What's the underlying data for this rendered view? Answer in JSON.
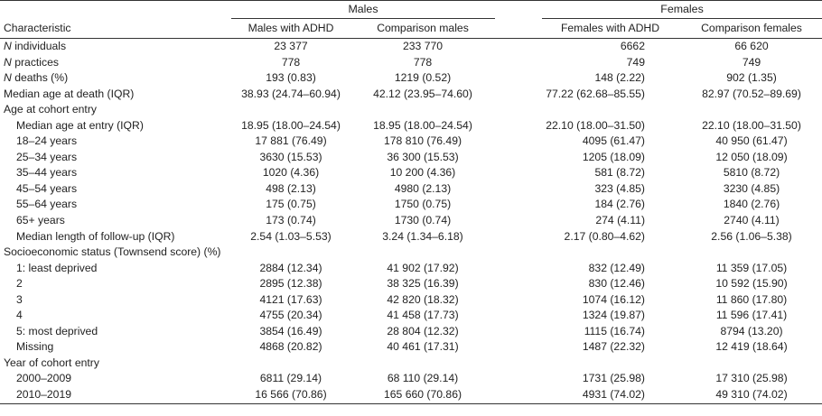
{
  "header": {
    "groups": {
      "males": "Males",
      "females": "Females"
    },
    "columns": {
      "characteristic": "Characteristic",
      "males_adhd": "Males with ADHD",
      "comparison_males": "Comparison males",
      "females_adhd": "Females with ADHD",
      "comparison_females": "Comparison females"
    }
  },
  "rows": [
    {
      "label_italic": "N",
      "label_rest": " individuals",
      "indent": false,
      "v": [
        "23 377",
        "233 770",
        "6662",
        "66 620"
      ]
    },
    {
      "label_italic": "N",
      "label_rest": " practices",
      "indent": false,
      "v": [
        "778",
        "778",
        "749",
        "749"
      ]
    },
    {
      "label_italic": "N",
      "label_rest": " deaths (%)",
      "indent": false,
      "v": [
        "193 (0.83)",
        "1219 (0.52)",
        "148 (2.22)",
        "902 (1.35)"
      ]
    },
    {
      "label_italic": "",
      "label_rest": "Median age at death (IQR)",
      "indent": false,
      "v": [
        "38.93 (24.74–60.94)",
        "42.12 (23.95–74.60)",
        "77.22 (62.68–85.55)",
        "82.97 (70.52–89.69)"
      ]
    },
    {
      "label_italic": "",
      "label_rest": "Age at cohort entry",
      "indent": false,
      "v": [
        "",
        "",
        "",
        ""
      ]
    },
    {
      "label_italic": "",
      "label_rest": "Median age at entry (IQR)",
      "indent": true,
      "v": [
        "18.95 (18.00–24.54)",
        "18.95 (18.00–24.54)",
        "22.10 (18.00–31.50)",
        "22.10 (18.00–31.50)"
      ]
    },
    {
      "label_italic": "",
      "label_rest": "18–24 years",
      "indent": true,
      "v": [
        "17 881 (76.49)",
        "178 810 (76.49)",
        "4095 (61.47)",
        "40 950 (61.47)"
      ]
    },
    {
      "label_italic": "",
      "label_rest": "25–34 years",
      "indent": true,
      "v": [
        "3630 (15.53)",
        "36 300 (15.53)",
        "1205 (18.09)",
        "12 050 (18.09)"
      ]
    },
    {
      "label_italic": "",
      "label_rest": "35–44 years",
      "indent": true,
      "v": [
        "1020 (4.36)",
        "10 200 (4.36)",
        "581 (8.72)",
        "5810 (8.72)"
      ]
    },
    {
      "label_italic": "",
      "label_rest": "45–54 years",
      "indent": true,
      "v": [
        "498 (2.13)",
        "4980 (2.13)",
        "323 (4.85)",
        "3230 (4.85)"
      ]
    },
    {
      "label_italic": "",
      "label_rest": "55–64 years",
      "indent": true,
      "v": [
        "175 (0.75)",
        "1750 (0.75)",
        "184 (2.76)",
        "1840 (2.76)"
      ]
    },
    {
      "label_italic": "",
      "label_rest": "65+ years",
      "indent": true,
      "v": [
        "173 (0.74)",
        "1730 (0.74)",
        "274 (4.11)",
        "2740 (4.11)"
      ]
    },
    {
      "label_italic": "",
      "label_rest": "Median length of follow-up (IQR)",
      "indent": true,
      "v": [
        "2.54 (1.03–5.53)",
        "3.24 (1.34–6.18)",
        "2.17 (0.80–4.62)",
        "2.56 (1.06–5.38)"
      ]
    },
    {
      "label_italic": "",
      "label_rest": "Socioeconomic status (Townsend score) (%)",
      "indent": false,
      "v": [
        "",
        "",
        "",
        ""
      ]
    },
    {
      "label_italic": "",
      "label_rest": "1: least deprived",
      "indent": true,
      "v": [
        "2884 (12.34)",
        "41 902 (17.92)",
        "832 (12.49)",
        "11 359 (17.05)"
      ]
    },
    {
      "label_italic": "",
      "label_rest": "2",
      "indent": true,
      "v": [
        "2895 (12.38)",
        "38 325 (16.39)",
        "830 (12.46)",
        "10 592 (15.90)"
      ]
    },
    {
      "label_italic": "",
      "label_rest": "3",
      "indent": true,
      "v": [
        "4121 (17.63)",
        "42 820 (18.32)",
        "1074 (16.12)",
        "11 860 (17.80)"
      ]
    },
    {
      "label_italic": "",
      "label_rest": "4",
      "indent": true,
      "v": [
        "4755 (20.34)",
        "41 458 (17.73)",
        "1324 (19.87)",
        "11 596 (17.41)"
      ]
    },
    {
      "label_italic": "",
      "label_rest": "5: most deprived",
      "indent": true,
      "v": [
        "3854 (16.49)",
        "28 804 (12.32)",
        "1115 (16.74)",
        "8794 (13.20)"
      ]
    },
    {
      "label_italic": "",
      "label_rest": "Missing",
      "indent": true,
      "v": [
        "4868 (20.82)",
        "40 461 (17.31)",
        "1487 (22.32)",
        "12 419 (18.64)"
      ]
    },
    {
      "label_italic": "",
      "label_rest": "Year of cohort entry",
      "indent": false,
      "v": [
        "",
        "",
        "",
        ""
      ]
    },
    {
      "label_italic": "",
      "label_rest": "2000–2009",
      "indent": true,
      "v": [
        "6811 (29.14)",
        "68 110 (29.14)",
        "1731 (25.98)",
        "17 310 (25.98)"
      ]
    },
    {
      "label_italic": "",
      "label_rest": "2010–2019",
      "indent": true,
      "v": [
        "16 566 (70.86)",
        "165 660 (70.86)",
        "4931 (74.02)",
        "49 310 (74.02)"
      ]
    }
  ]
}
